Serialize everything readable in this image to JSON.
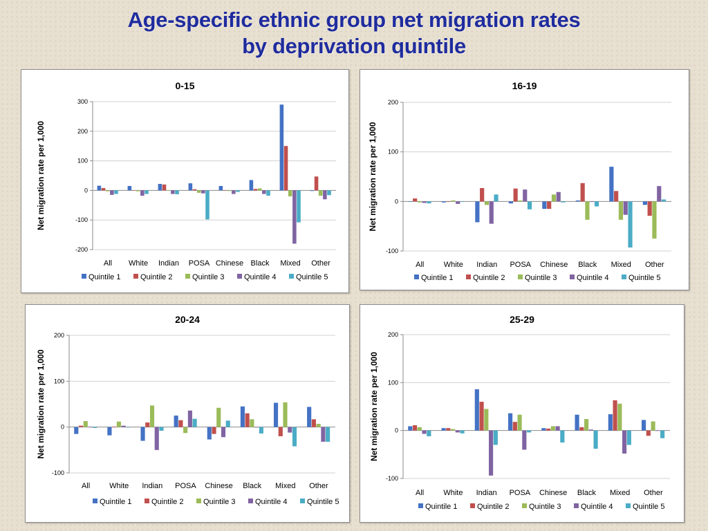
{
  "title": {
    "line1": "Age-specific ethnic group net migration rates",
    "line2": "by deprivation quintile"
  },
  "colors": {
    "series": [
      "#4472c4",
      "#c0504d",
      "#9bbb59",
      "#8064a2",
      "#4bacc6"
    ],
    "title": "#1f2c9e"
  },
  "chart_data": [
    {
      "type": "bar",
      "title": "0-15",
      "ylabel": "Net migration rate per 1,000",
      "xlabel": "",
      "ylim": [
        -200,
        300
      ],
      "yticks": [
        -200,
        -100,
        0,
        100,
        200,
        300
      ],
      "grid": true,
      "legend": "bottom",
      "categories": [
        "All",
        "White",
        "Indian",
        "POSA",
        "Chinese",
        "Black",
        "Mixed",
        "Other"
      ],
      "series": [
        {
          "name": "Quintile 1",
          "values": [
            16,
            15,
            22,
            24,
            15,
            35,
            290,
            -2
          ]
        },
        {
          "name": "Quintile 2",
          "values": [
            8,
            1,
            20,
            4,
            1,
            5,
            150,
            47
          ]
        },
        {
          "name": "Quintile 3",
          "values": [
            -3,
            -3,
            1,
            -8,
            -2,
            7,
            -20,
            -18
          ]
        },
        {
          "name": "Quintile 4",
          "values": [
            -15,
            -18,
            -12,
            -10,
            -12,
            -12,
            -180,
            -30
          ]
        },
        {
          "name": "Quintile 5",
          "values": [
            -12,
            -12,
            -13,
            -98,
            -5,
            -18,
            -108,
            -16
          ]
        }
      ]
    },
    {
      "type": "bar",
      "title": "16-19",
      "ylabel": "Net migration rate per 1,000",
      "xlabel": "",
      "ylim": [
        -100,
        200
      ],
      "yticks": [
        -100,
        0,
        100,
        200
      ],
      "grid": true,
      "legend": "bottom",
      "categories": [
        "All",
        "White",
        "Indian",
        "POSA",
        "Chinese",
        "Black",
        "Mixed",
        "Other"
      ],
      "series": [
        {
          "name": "Quintile 1",
          "values": [
            0,
            -2,
            -42,
            -4,
            -15,
            2,
            70,
            -7
          ]
        },
        {
          "name": "Quintile 2",
          "values": [
            6,
            -1,
            27,
            26,
            -15,
            37,
            21,
            -29
          ]
        },
        {
          "name": "Quintile 3",
          "values": [
            -2,
            2,
            -7,
            2,
            14,
            -37,
            -37,
            -75
          ]
        },
        {
          "name": "Quintile 4",
          "values": [
            -3,
            -5,
            -45,
            24,
            19,
            -1,
            -27,
            31
          ]
        },
        {
          "name": "Quintile 5",
          "values": [
            -4,
            -1,
            14,
            -16,
            -2,
            -10,
            -93,
            4
          ]
        }
      ]
    },
    {
      "type": "bar",
      "title": "20-24",
      "ylabel": "Net migration rate per 1,000",
      "xlabel": "",
      "ylim": [
        -100,
        200
      ],
      "yticks": [
        -100,
        0,
        100,
        200
      ],
      "grid": true,
      "legend": "bottom",
      "categories": [
        "All",
        "White",
        "Indian",
        "POSA",
        "Chinese",
        "Black",
        "Mixed",
        "Other"
      ],
      "series": [
        {
          "name": "Quintile 1",
          "values": [
            -15,
            -18,
            -30,
            25,
            -27,
            45,
            53,
            44
          ]
        },
        {
          "name": "Quintile 2",
          "values": [
            3,
            1,
            10,
            15,
            -15,
            30,
            -20,
            17
          ]
        },
        {
          "name": "Quintile 3",
          "values": [
            13,
            12,
            47,
            -13,
            42,
            17,
            54,
            7
          ]
        },
        {
          "name": "Quintile 4",
          "values": [
            1,
            3,
            -50,
            36,
            -22,
            0,
            -12,
            -32
          ]
        },
        {
          "name": "Quintile 5",
          "values": [
            -2,
            0,
            -8,
            18,
            14,
            -14,
            -42,
            -32
          ]
        }
      ]
    },
    {
      "type": "bar",
      "title": "25-29",
      "ylabel": "Net migration rate per 1,000",
      "xlabel": "",
      "ylim": [
        -100,
        200
      ],
      "yticks": [
        -100,
        0,
        100,
        200
      ],
      "grid": true,
      "legend": "bottom",
      "categories": [
        "All",
        "White",
        "Indian",
        "POSA",
        "Chinese",
        "Black",
        "Mixed",
        "Other"
      ],
      "series": [
        {
          "name": "Quintile 1",
          "values": [
            9,
            5,
            86,
            36,
            5,
            33,
            34,
            22
          ]
        },
        {
          "name": "Quintile 2",
          "values": [
            11,
            5,
            60,
            18,
            4,
            7,
            63,
            -11
          ]
        },
        {
          "name": "Quintile 3",
          "values": [
            7,
            3,
            45,
            33,
            9,
            24,
            56,
            19
          ]
        },
        {
          "name": "Quintile 4",
          "values": [
            -7,
            -4,
            -94,
            -40,
            9,
            2,
            -48,
            0
          ]
        },
        {
          "name": "Quintile 5",
          "values": [
            -12,
            -6,
            -30,
            -4,
            -25,
            -38,
            -30,
            -16
          ]
        }
      ]
    }
  ]
}
